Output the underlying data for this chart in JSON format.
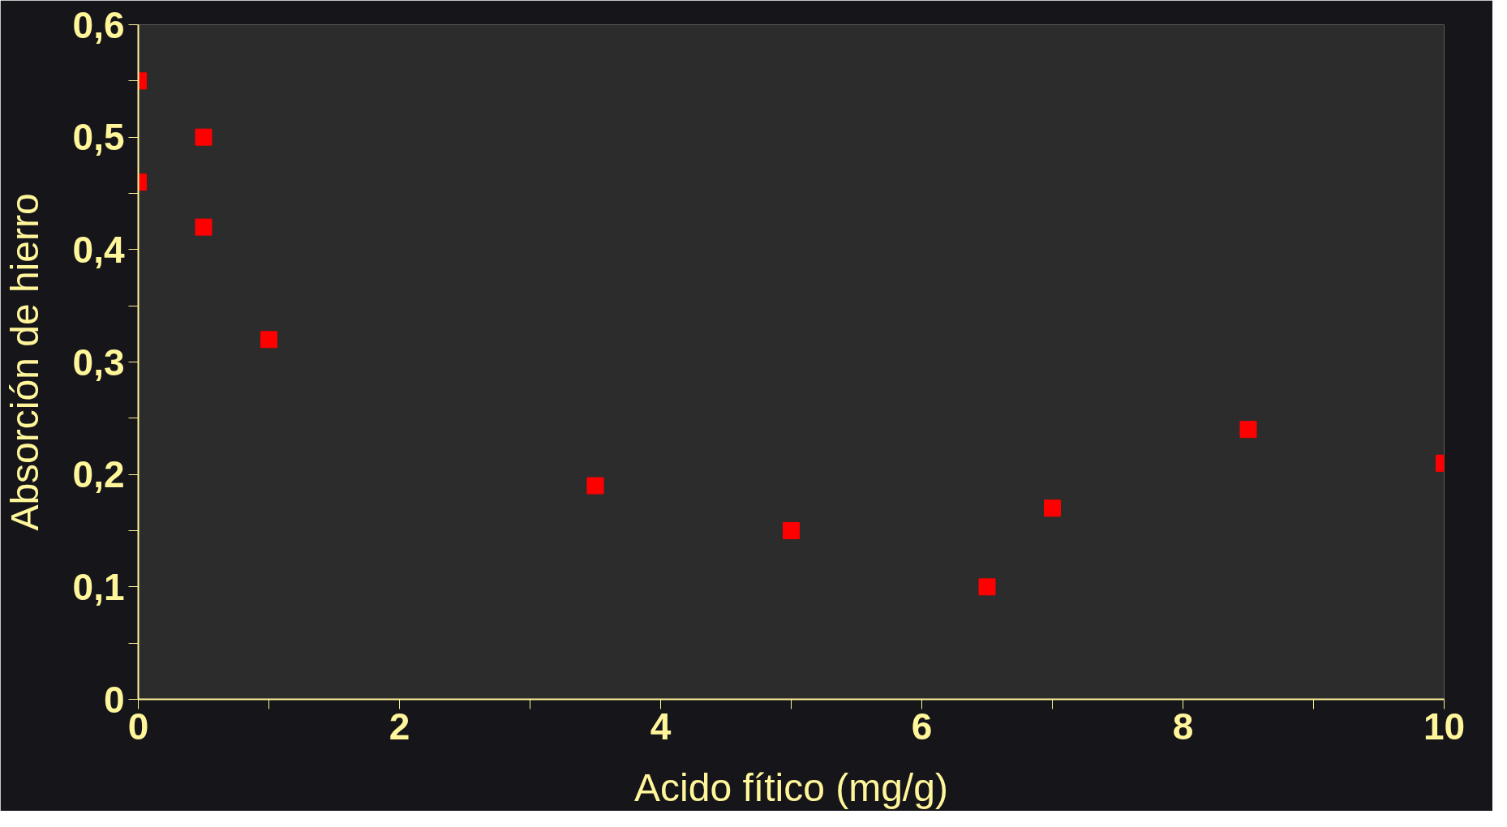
{
  "chart_data": {
    "type": "scatter",
    "xlabel": "Acido fítico (mg/g)",
    "ylabel": "Absorción de hierro",
    "x": [
      0,
      0,
      0.5,
      0.5,
      1,
      3.5,
      5,
      6.5,
      7,
      8.5,
      10
    ],
    "values": [
      0.55,
      0.46,
      0.5,
      0.42,
      0.32,
      0.19,
      0.15,
      0.1,
      0.17,
      0.24,
      0.21
    ],
    "color": "#ff0000",
    "marker": "square",
    "grid": false,
    "xlim": [
      0,
      10
    ],
    "ylim": [
      0,
      0.6
    ],
    "xticks": [
      0,
      {
        "value": 1,
        "label": null
      },
      2,
      {
        "value": 3,
        "label": null
      },
      4,
      {
        "value": 5,
        "label": null
      },
      6,
      {
        "value": 7,
        "label": null
      },
      8,
      {
        "value": 9,
        "label": null
      },
      10
    ],
    "yticks": [
      {
        "value": 0,
        "label": "0"
      },
      {
        "value": 0.05,
        "label": null
      },
      {
        "value": 0.1,
        "label": "0,1"
      },
      {
        "value": 0.15,
        "label": null
      },
      {
        "value": 0.2,
        "label": "0,2"
      },
      {
        "value": 0.25,
        "label": null
      },
      {
        "value": 0.3,
        "label": "0,3"
      },
      {
        "value": 0.35,
        "label": null
      },
      {
        "value": 0.4,
        "label": "0,4"
      },
      {
        "value": 0.45,
        "label": null
      },
      {
        "value": 0.5,
        "label": "0,5"
      },
      {
        "value": 0.55,
        "label": null
      },
      {
        "value": 0.6,
        "label": "0,6"
      }
    ]
  }
}
